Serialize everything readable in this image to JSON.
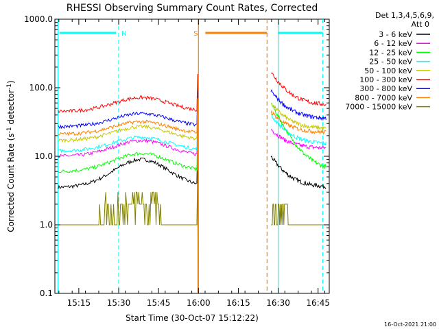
{
  "chart_data": {
    "type": "line",
    "title": "RHESSI Observing Summary Count Rates, Corrected",
    "xlabel": "Start Time (30-Oct-07 15:12:22)",
    "ylabel_main": "Corrected Count Rate (s",
    "ylabel_sup1": "-1",
    "ylabel_mid": " detector",
    "ylabel_sup2": "-1",
    "ylabel_end": ")",
    "y_scale": "log",
    "ylim": [
      0.1,
      1000
    ],
    "xlim_minutes": [
      15.1,
      16.82
    ],
    "x_ticks": [
      {
        "label": "15:15",
        "m": 15.25
      },
      {
        "label": "15:30",
        "m": 15.5
      },
      {
        "label": "15:45",
        "m": 15.75
      },
      {
        "label": "16:00",
        "m": 16.0
      },
      {
        "label": "16:15",
        "m": 16.25
      },
      {
        "label": "16:30",
        "m": 16.5
      },
      {
        "label": "16:45",
        "m": 16.75
      }
    ],
    "y_ticks": [
      {
        "label": "0.1",
        "v": 0.1
      },
      {
        "label": "1.0",
        "v": 1
      },
      {
        "label": "10.0",
        "v": 10
      },
      {
        "label": "100.0",
        "v": 100
      },
      {
        "label": "1000.0",
        "v": 1000
      }
    ],
    "legend_header": [
      "Det 1,3,4,5,6,9,",
      "Att 0"
    ],
    "legend_position": "right",
    "series": [
      {
        "name": "3 - 6 keV",
        "color": "#000000",
        "pre": [
          3.5,
          9.0
        ],
        "post": [
          10.0,
          3.5
        ]
      },
      {
        "name": "6 - 12 keV",
        "color": "#ff00ff",
        "pre": [
          10.0,
          17.0
        ],
        "post": [
          25.0,
          13.0
        ]
      },
      {
        "name": "12 - 25 keV",
        "color": "#00ff00",
        "pre": [
          6.0,
          11.0
        ],
        "post": [
          60.0,
          6.0
        ]
      },
      {
        "name": "25 - 50 keV",
        "color": "#00ffff",
        "pre": [
          12.0,
          19.0
        ],
        "post": [
          40.0,
          15.0
        ]
      },
      {
        "name": "50 - 100 keV",
        "color": "#c8c800",
        "pre": [
          17.0,
          27.0
        ],
        "post": [
          60.0,
          25.0
        ]
      },
      {
        "name": "100 - 300 keV",
        "color": "#ff0000",
        "pre": [
          45.0,
          72.0
        ],
        "post": [
          170.0,
          55.0
        ]
      },
      {
        "name": "300 - 800 keV",
        "color": "#0000ff",
        "pre": [
          27.0,
          42.0
        ],
        "post": [
          90.0,
          35.0
        ]
      },
      {
        "name": "800 - 7000 keV",
        "color": "#ff8000",
        "pre": [
          21.0,
          32.0
        ],
        "post": [
          45.0,
          22.0
        ]
      },
      {
        "name": "7000 - 15000 keV",
        "color": "#808000",
        "pre": [
          1.0,
          2.5
        ],
        "post": [
          2.0,
          1.0
        ]
      }
    ],
    "intervals": [
      {
        "label": "N",
        "color": "#00ffff",
        "start_m": 15.12,
        "end_m": 15.5
      },
      {
        "label": "S",
        "color": "#ff8000",
        "start_m": 16.0,
        "end_m": 16.43
      },
      {
        "label": "",
        "color": "#00ffff",
        "start_m": 16.5,
        "end_m": 16.78
      }
    ],
    "footer": "16-Oct-2021 21:00"
  }
}
